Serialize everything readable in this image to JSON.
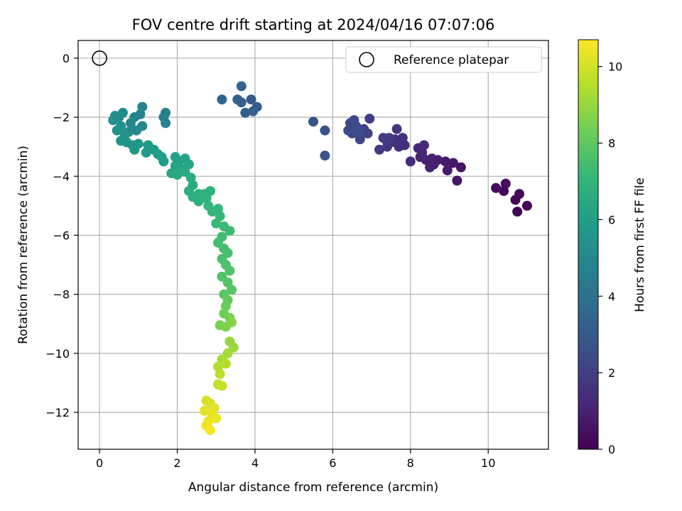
{
  "chart_data": {
    "type": "scatter",
    "title": "FOV centre drift starting at 2024/04/16 07:07:06",
    "xlabel": "Angular distance from reference (arcmin)",
    "ylabel": "Rotation from reference (arcmin)",
    "xlim": [
      -0.55,
      11.55
    ],
    "ylim": [
      -13.25,
      0.6
    ],
    "xticks": [
      0,
      2,
      4,
      6,
      8,
      10
    ],
    "yticks": [
      0,
      -2,
      -4,
      -6,
      -8,
      -10,
      -12
    ],
    "xtick_labels": [
      "0",
      "2",
      "4",
      "6",
      "8",
      "10"
    ],
    "ytick_labels": [
      "0",
      "−2",
      "−4",
      "−6",
      "−8",
      "−10",
      "−12"
    ],
    "grid": true,
    "legend": {
      "placement": "top-right",
      "entries": [
        "Reference platepar"
      ]
    },
    "reference_point": {
      "x": 0,
      "y": 0,
      "marker": "hollow-circle"
    },
    "colorbar": {
      "label": "Hours from first FF file",
      "range": [
        0,
        10.7
      ],
      "ticks": [
        0,
        2,
        4,
        6,
        8,
        10
      ],
      "tick_labels": [
        "0",
        "2",
        "4",
        "6",
        "8",
        "10"
      ],
      "colormap": "viridis"
    },
    "points": [
      [
        10.75,
        -5.2,
        0.05
      ],
      [
        11.0,
        -5.0,
        0.1
      ],
      [
        10.7,
        -4.8,
        0.15
      ],
      [
        10.8,
        -4.6,
        0.2
      ],
      [
        10.4,
        -4.5,
        0.25
      ],
      [
        10.45,
        -4.25,
        0.3
      ],
      [
        10.2,
        -4.4,
        0.35
      ],
      [
        9.3,
        -3.7,
        0.6
      ],
      [
        9.2,
        -4.15,
        0.65
      ],
      [
        9.1,
        -3.55,
        0.7
      ],
      [
        8.95,
        -3.8,
        0.75
      ],
      [
        8.9,
        -3.5,
        0.8
      ],
      [
        8.7,
        -3.45,
        0.85
      ],
      [
        8.6,
        -3.6,
        0.9
      ],
      [
        8.55,
        -3.4,
        0.95
      ],
      [
        8.5,
        -3.7,
        1.0
      ],
      [
        8.4,
        -3.45,
        1.05
      ],
      [
        8.25,
        -3.35,
        1.1
      ],
      [
        8.3,
        -3.2,
        1.15
      ],
      [
        8.2,
        -3.05,
        1.2
      ],
      [
        8.35,
        -2.95,
        1.25
      ],
      [
        8.0,
        -3.5,
        1.3
      ],
      [
        7.85,
        -2.95,
        1.4
      ],
      [
        7.7,
        -3.0,
        1.45
      ],
      [
        7.6,
        -2.75,
        1.5
      ],
      [
        7.8,
        -2.7,
        1.55
      ],
      [
        7.65,
        -2.4,
        1.6
      ],
      [
        7.5,
        -2.85,
        1.65
      ],
      [
        7.4,
        -3.0,
        1.7
      ],
      [
        7.3,
        -2.7,
        1.75
      ],
      [
        7.2,
        -3.1,
        1.8
      ],
      [
        7.45,
        -2.7,
        1.85
      ],
      [
        7.35,
        -2.75,
        1.9
      ],
      [
        6.95,
        -2.05,
        2.0
      ],
      [
        6.9,
        -2.55,
        2.05
      ],
      [
        6.8,
        -2.4,
        2.1
      ],
      [
        6.7,
        -2.75,
        2.15
      ],
      [
        6.75,
        -2.55,
        2.2
      ],
      [
        6.6,
        -2.3,
        2.25
      ],
      [
        6.5,
        -2.55,
        2.3
      ],
      [
        6.45,
        -2.2,
        2.35
      ],
      [
        6.55,
        -2.1,
        2.4
      ],
      [
        6.4,
        -2.45,
        2.45
      ],
      [
        6.65,
        -2.5,
        2.5
      ],
      [
        6.6,
        -2.4,
        2.55
      ],
      [
        5.5,
        -2.15,
        2.65
      ],
      [
        5.8,
        -2.45,
        2.7
      ],
      [
        5.8,
        -3.3,
        2.8
      ],
      [
        4.05,
        -1.65,
        3.1
      ],
      [
        3.9,
        -1.4,
        3.15
      ],
      [
        3.95,
        -1.8,
        3.2
      ],
      [
        3.75,
        -1.85,
        3.25
      ],
      [
        3.65,
        -1.5,
        3.3
      ],
      [
        3.55,
        -1.4,
        3.35
      ],
      [
        3.65,
        -0.95,
        3.4
      ],
      [
        3.15,
        -1.4,
        3.45
      ],
      [
        1.7,
        -1.85,
        4.6
      ],
      [
        1.65,
        -2.0,
        4.65
      ],
      [
        1.7,
        -2.2,
        4.7
      ],
      [
        1.1,
        -1.65,
        4.8
      ],
      [
        1.05,
        -1.9,
        4.85
      ],
      [
        0.9,
        -2.0,
        4.9
      ],
      [
        0.8,
        -2.2,
        4.95
      ],
      [
        1.1,
        -2.3,
        5.0
      ],
      [
        0.95,
        -2.45,
        5.05
      ],
      [
        0.75,
        -2.5,
        5.1
      ],
      [
        0.6,
        -1.85,
        5.15
      ],
      [
        0.5,
        -2.0,
        5.2
      ],
      [
        0.4,
        -1.95,
        5.25
      ],
      [
        0.35,
        -2.1,
        5.3
      ],
      [
        0.55,
        -2.3,
        5.35
      ],
      [
        0.45,
        -2.45,
        5.4
      ],
      [
        0.65,
        -2.6,
        5.45
      ],
      [
        0.55,
        -2.8,
        5.5
      ],
      [
        0.7,
        -2.85,
        5.55
      ],
      [
        0.85,
        -2.95,
        5.6
      ],
      [
        0.9,
        -3.1,
        5.65
      ],
      [
        1.0,
        -2.9,
        5.7
      ],
      [
        1.25,
        -2.95,
        5.75
      ],
      [
        1.2,
        -3.2,
        5.8
      ],
      [
        1.4,
        -3.1,
        5.85
      ],
      [
        1.5,
        -3.25,
        5.9
      ],
      [
        1.6,
        -3.35,
        5.95
      ],
      [
        1.65,
        -3.5,
        6.0
      ],
      [
        1.95,
        -3.35,
        6.1
      ],
      [
        2.05,
        -3.5,
        6.15
      ],
      [
        2.2,
        -3.4,
        6.2
      ],
      [
        1.95,
        -3.65,
        6.25
      ],
      [
        2.1,
        -3.75,
        6.3
      ],
      [
        2.3,
        -3.6,
        6.35
      ],
      [
        1.85,
        -3.9,
        6.4
      ],
      [
        2.0,
        -3.95,
        6.45
      ],
      [
        2.2,
        -3.85,
        6.5
      ],
      [
        2.35,
        -4.05,
        6.55
      ],
      [
        2.4,
        -4.3,
        6.6
      ],
      [
        2.3,
        -4.5,
        6.65
      ],
      [
        2.4,
        -4.7,
        6.7
      ],
      [
        2.55,
        -4.6,
        6.75
      ],
      [
        2.55,
        -4.85,
        6.8
      ],
      [
        2.7,
        -4.6,
        6.85
      ],
      [
        2.85,
        -4.5,
        6.9
      ],
      [
        2.75,
        -4.75,
        6.95
      ],
      [
        2.8,
        -5.0,
        7.0
      ],
      [
        2.9,
        -5.2,
        7.05
      ],
      [
        3.05,
        -5.1,
        7.1
      ],
      [
        3.1,
        -5.35,
        7.15
      ],
      [
        3.0,
        -5.6,
        7.2
      ],
      [
        3.2,
        -5.7,
        7.25
      ],
      [
        3.35,
        -5.85,
        7.3
      ],
      [
        3.15,
        -6.05,
        7.4
      ],
      [
        3.05,
        -6.25,
        7.45
      ],
      [
        3.2,
        -6.45,
        7.5
      ],
      [
        3.3,
        -6.6,
        7.55
      ],
      [
        3.15,
        -6.8,
        7.6
      ],
      [
        3.25,
        -7.0,
        7.65
      ],
      [
        3.35,
        -7.2,
        7.7
      ],
      [
        3.15,
        -7.4,
        7.75
      ],
      [
        3.3,
        -7.6,
        7.8
      ],
      [
        3.4,
        -7.85,
        7.85
      ],
      [
        3.2,
        -8.0,
        7.9
      ],
      [
        3.3,
        -8.2,
        8.1
      ],
      [
        3.25,
        -8.4,
        8.2
      ],
      [
        3.2,
        -8.65,
        8.3
      ],
      [
        3.35,
        -8.8,
        8.4
      ],
      [
        3.1,
        -9.05,
        8.5
      ],
      [
        3.25,
        -9.1,
        8.6
      ],
      [
        3.4,
        -8.95,
        8.7
      ],
      [
        3.35,
        -9.6,
        9.0
      ],
      [
        3.45,
        -9.8,
        9.1
      ],
      [
        3.3,
        -10.0,
        9.2
      ],
      [
        3.15,
        -10.2,
        9.3
      ],
      [
        3.05,
        -10.45,
        9.4
      ],
      [
        3.25,
        -10.35,
        9.5
      ],
      [
        3.1,
        -10.7,
        9.6
      ],
      [
        3.05,
        -11.05,
        9.7
      ],
      [
        3.15,
        -11.1,
        9.75
      ],
      [
        2.75,
        -11.6,
        10.0
      ],
      [
        2.85,
        -11.7,
        10.1
      ],
      [
        2.95,
        -11.85,
        10.2
      ],
      [
        2.7,
        -11.95,
        10.25
      ],
      [
        2.9,
        -12.05,
        10.3
      ],
      [
        3.0,
        -12.2,
        10.35
      ],
      [
        2.8,
        -12.3,
        10.4
      ],
      [
        2.75,
        -12.45,
        10.5
      ],
      [
        2.85,
        -12.6,
        10.6
      ]
    ]
  }
}
